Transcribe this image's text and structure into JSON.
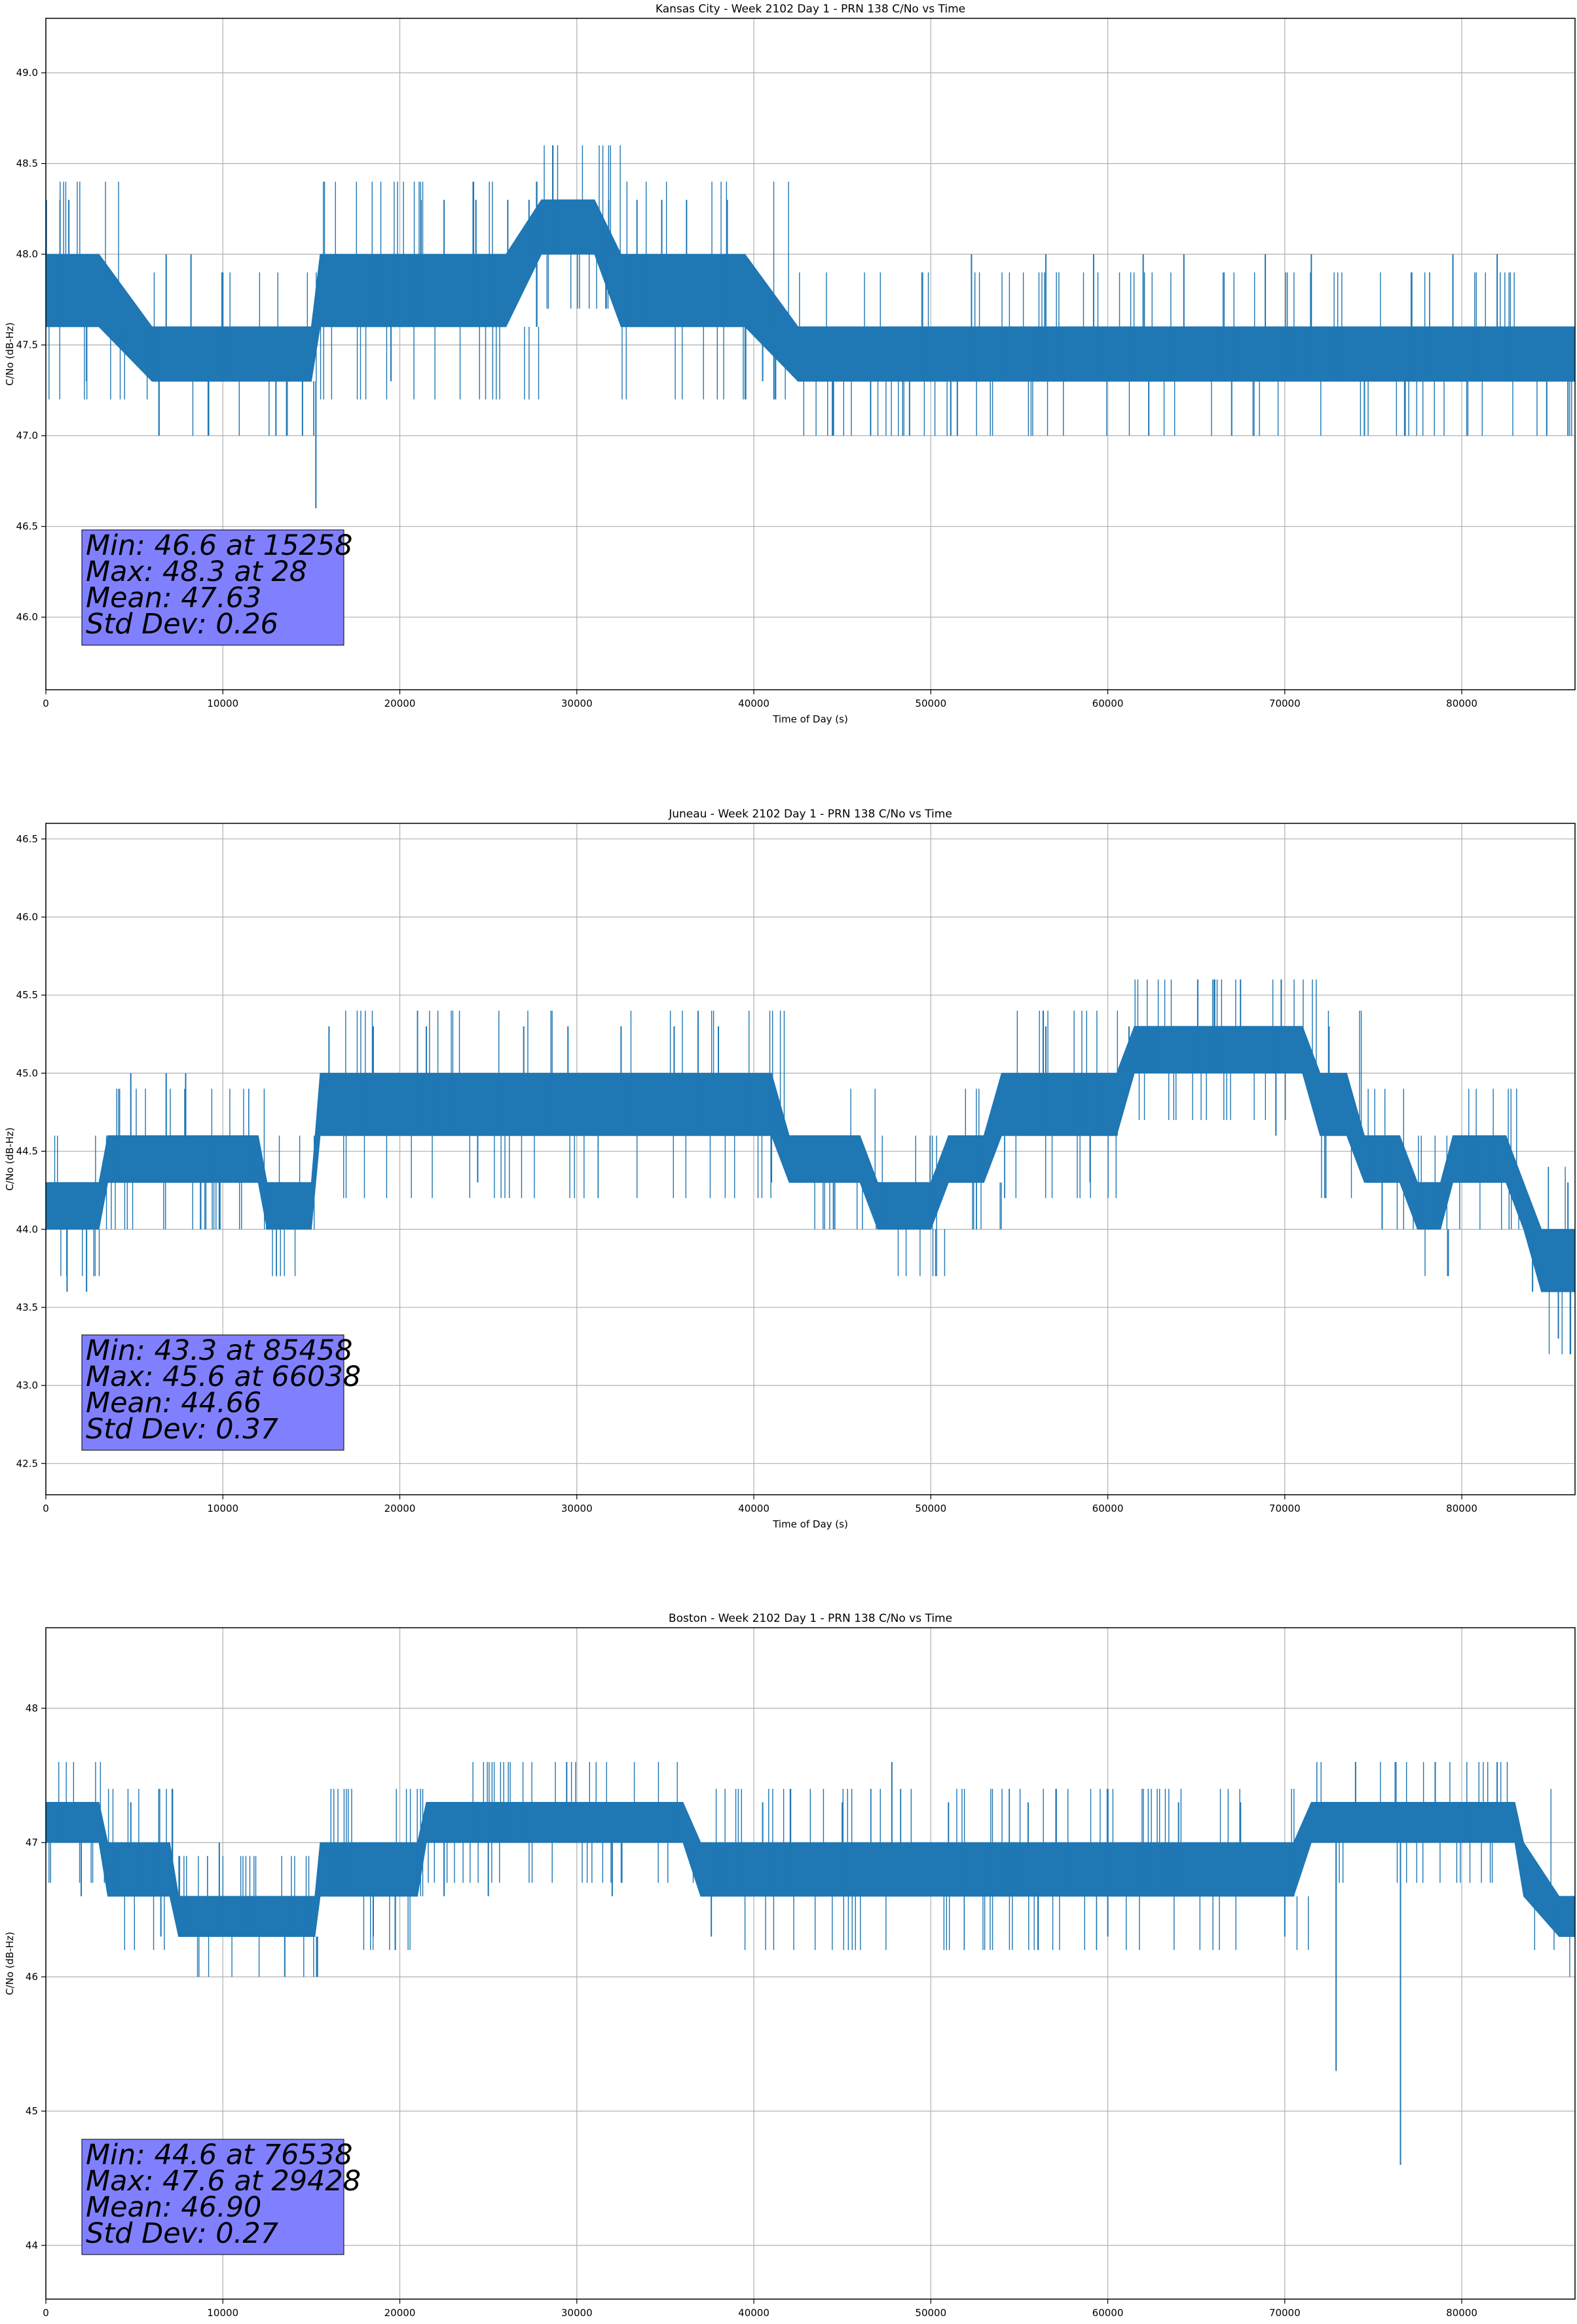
{
  "colors": {
    "series": "#1f77b4",
    "grid": "#b0b0b0",
    "stats_box": "#8080ff",
    "axes": "#000000"
  },
  "chart_data": [
    {
      "type": "line",
      "title": "Kansas City - Week 2102 Day 1 - PRN 138 C/No vs Time",
      "xlabel": "Time of Day (s)",
      "ylabel": "C/No (dB-Hz)",
      "xlim": [
        0,
        86400
      ],
      "ylim": [
        45.6,
        49.3
      ],
      "xticks": [
        0,
        10000,
        20000,
        30000,
        40000,
        50000,
        60000,
        70000,
        80000
      ],
      "yticks": [
        "46.0",
        "46.5",
        "47.0",
        "47.5",
        "48.0",
        "48.5",
        "49.0"
      ],
      "grid": true,
      "series": [
        {
          "band": [
            [
              0,
              47.6,
              48.0
            ],
            [
              3000,
              47.6,
              48.0
            ],
            [
              6000,
              47.3,
              47.6
            ],
            [
              10000,
              47.3,
              47.6
            ],
            [
              15000,
              47.3,
              47.6
            ],
            [
              15500,
              47.6,
              48.0
            ],
            [
              21000,
              47.6,
              48.0
            ],
            [
              26000,
              47.6,
              48.0
            ],
            [
              28000,
              48.0,
              48.3
            ],
            [
              31000,
              48.0,
              48.3
            ],
            [
              32500,
              47.6,
              48.0
            ],
            [
              39500,
              47.6,
              48.0
            ],
            [
              42500,
              47.3,
              47.6
            ],
            [
              50000,
              47.3,
              47.6
            ],
            [
              60000,
              47.3,
              47.6
            ],
            [
              70000,
              47.3,
              47.6
            ],
            [
              86400,
              47.3,
              47.6
            ]
          ],
          "spikes": [
            [
              28,
              48.3
            ],
            [
              800,
              48.3
            ],
            [
              1300,
              48.3
            ],
            [
              2300,
              47.3
            ],
            [
              6800,
              48.0
            ],
            [
              8200,
              48.0
            ],
            [
              13000,
              47.0
            ],
            [
              14500,
              47.0
            ],
            [
              15258,
              46.6
            ],
            [
              19500,
              47.3
            ],
            [
              21200,
              48.3
            ],
            [
              22500,
              48.3
            ],
            [
              24300,
              48.3
            ],
            [
              26100,
              48.3
            ],
            [
              27300,
              48.3
            ],
            [
              29800,
              48.3
            ],
            [
              31800,
              48.3
            ],
            [
              33400,
              48.3
            ],
            [
              34800,
              48.3
            ],
            [
              36200,
              48.3
            ],
            [
              38500,
              48.3
            ],
            [
              40500,
              47.3
            ],
            [
              44500,
              47.0
            ],
            [
              46600,
              47.0
            ],
            [
              48800,
              47.0
            ],
            [
              51500,
              47.0
            ],
            [
              52300,
              48.0
            ],
            [
              56500,
              48.0
            ],
            [
              59200,
              48.0
            ],
            [
              62000,
              48.0
            ],
            [
              64300,
              48.0
            ],
            [
              67000,
              47.0
            ],
            [
              68900,
              48.0
            ],
            [
              71500,
              48.0
            ],
            [
              74500,
              47.0
            ],
            [
              76800,
              47.0
            ],
            [
              79500,
              48.0
            ],
            [
              82000,
              48.0
            ],
            [
              84800,
              47.0
            ],
            [
              86000,
              47.0
            ]
          ]
        }
      ],
      "stats": [
        "Min: 46.6 at 15258",
        "Max: 48.3 at 28",
        "Mean: 47.63",
        "Std Dev: 0.26"
      ]
    },
    {
      "type": "line",
      "title": "Juneau - Week 2102 Day 1 - PRN 138 C/No vs Time",
      "xlabel": "Time of Day (s)",
      "ylabel": "C/No (dB-Hz)",
      "xlim": [
        0,
        86400
      ],
      "ylim": [
        42.3,
        46.6
      ],
      "xticks": [
        0,
        10000,
        20000,
        30000,
        40000,
        50000,
        60000,
        70000,
        80000
      ],
      "yticks": [
        "42.5",
        "43.0",
        "43.5",
        "44.0",
        "44.5",
        "45.0",
        "45.5",
        "46.0",
        "46.5"
      ],
      "grid": true,
      "series": [
        {
          "band": [
            [
              0,
              44.0,
              44.3
            ],
            [
              3000,
              44.0,
              44.3
            ],
            [
              3500,
              44.3,
              44.6
            ],
            [
              12000,
              44.3,
              44.6
            ],
            [
              12500,
              44.0,
              44.3
            ],
            [
              15000,
              44.0,
              44.3
            ],
            [
              15500,
              44.6,
              45.0
            ],
            [
              21000,
              44.6,
              45.0
            ],
            [
              24000,
              44.6,
              45.0
            ],
            [
              41000,
              44.6,
              45.0
            ],
            [
              42000,
              44.3,
              44.6
            ],
            [
              46000,
              44.3,
              44.6
            ],
            [
              47000,
              44.0,
              44.3
            ],
            [
              50000,
              44.0,
              44.3
            ],
            [
              51000,
              44.3,
              44.6
            ],
            [
              53000,
              44.3,
              44.6
            ],
            [
              54000,
              44.6,
              45.0
            ],
            [
              60500,
              44.6,
              45.0
            ],
            [
              61500,
              45.0,
              45.3
            ],
            [
              71000,
              45.0,
              45.3
            ],
            [
              72000,
              44.6,
              45.0
            ],
            [
              73500,
              44.6,
              45.0
            ],
            [
              74500,
              44.3,
              44.6
            ],
            [
              76500,
              44.3,
              44.6
            ],
            [
              77500,
              44.0,
              44.3
            ],
            [
              78800,
              44.0,
              44.3
            ],
            [
              79500,
              44.3,
              44.6
            ],
            [
              82500,
              44.3,
              44.6
            ],
            [
              83500,
              44.0,
              44.3
            ],
            [
              84500,
              43.6,
              44.0
            ],
            [
              86400,
              43.6,
              44.0
            ]
          ],
          "spikes": [
            [
              1200,
              43.6
            ],
            [
              2300,
              43.6
            ],
            [
              4800,
              45.0
            ],
            [
              6800,
              45.0
            ],
            [
              7900,
              45.0
            ],
            [
              9800,
              44.0
            ],
            [
              13500,
              44.0
            ],
            [
              16000,
              45.3
            ],
            [
              18500,
              45.3
            ],
            [
              21500,
              45.3
            ],
            [
              24400,
              44.3
            ],
            [
              27000,
              45.3
            ],
            [
              29500,
              45.3
            ],
            [
              32500,
              45.3
            ],
            [
              35500,
              45.3
            ],
            [
              38000,
              45.3
            ],
            [
              41000,
              44.3
            ],
            [
              44500,
              44.0
            ],
            [
              51000,
              44.6
            ],
            [
              54000,
              44.3
            ],
            [
              56500,
              45.3
            ],
            [
              59000,
              44.3
            ],
            [
              61200,
              45.3
            ],
            [
              64000,
              45.3
            ],
            [
              66038,
              45.6
            ],
            [
              67500,
              45.6
            ],
            [
              69800,
              45.6
            ],
            [
              69500,
              44.6
            ],
            [
              72500,
              45.3
            ],
            [
              75500,
              44.0
            ],
            [
              77500,
              44.0
            ],
            [
              81500,
              44.6
            ],
            [
              84000,
              43.6
            ],
            [
              85458,
              43.3
            ],
            [
              86000,
              44.3
            ]
          ]
        }
      ],
      "stats": [
        "Min: 43.3 at 85458",
        "Max: 45.6 at 66038",
        "Mean: 44.66",
        "Std Dev: 0.37"
      ]
    },
    {
      "type": "line",
      "title": "Boston - Week 2102 Day 1 - PRN 138 C/No vs Time",
      "xlabel": "Time of Day (s)",
      "ylabel": "C/No (dB-Hz)",
      "xlim": [
        0,
        86400
      ],
      "ylim": [
        43.6,
        48.6
      ],
      "xticks": [
        0,
        10000,
        20000,
        30000,
        40000,
        50000,
        60000,
        70000,
        80000
      ],
      "yticks": [
        "44",
        "45",
        "46",
        "47",
        "48"
      ],
      "grid": true,
      "series": [
        {
          "band": [
            [
              0,
              47.0,
              47.3
            ],
            [
              3000,
              47.0,
              47.3
            ],
            [
              3500,
              46.6,
              47.0
            ],
            [
              7000,
              46.6,
              47.0
            ],
            [
              7500,
              46.3,
              46.6
            ],
            [
              15200,
              46.3,
              46.6
            ],
            [
              15500,
              46.6,
              47.0
            ],
            [
              21000,
              46.6,
              47.0
            ],
            [
              21500,
              47.0,
              47.3
            ],
            [
              36000,
              47.0,
              47.3
            ],
            [
              37000,
              46.6,
              47.0
            ],
            [
              56500,
              46.6,
              47.0
            ],
            [
              57500,
              46.6,
              47.0
            ],
            [
              70500,
              46.6,
              47.0
            ],
            [
              71500,
              47.0,
              47.3
            ],
            [
              73000,
              47.0,
              47.3
            ],
            [
              73500,
              47.0,
              47.3
            ],
            [
              83000,
              47.0,
              47.3
            ],
            [
              83500,
              46.6,
              47.0
            ],
            [
              85500,
              46.3,
              46.6
            ],
            [
              86400,
              46.3,
              46.6
            ]
          ],
          "spikes": [
            [
              2000,
              46.6
            ],
            [
              4800,
              47.3
            ],
            [
              6500,
              46.3
            ],
            [
              9800,
              47.0
            ],
            [
              13500,
              46.0
            ],
            [
              15300,
              46.0
            ],
            [
              18500,
              46.3
            ],
            [
              22500,
              46.6
            ],
            [
              25000,
              46.6
            ],
            [
              29428,
              47.6
            ],
            [
              32000,
              46.6
            ],
            [
              37600,
              46.3
            ],
            [
              40500,
              47.3
            ],
            [
              45000,
              47.3
            ],
            [
              47800,
              47.6
            ],
            [
              51000,
              47.3
            ],
            [
              55500,
              47.3
            ],
            [
              60000,
              46.3
            ],
            [
              64000,
              47.3
            ],
            [
              67500,
              47.3
            ],
            [
              70000,
              46.3
            ],
            [
              72900,
              45.3
            ],
            [
              74000,
              47.6
            ],
            [
              76538,
              44.6
            ],
            [
              78500,
              47.6
            ],
            [
              80500,
              47.3
            ],
            [
              82000,
              47.6
            ],
            [
              84500,
              46.6
            ]
          ]
        }
      ],
      "stats": [
        "Min: 44.6 at 76538",
        "Max: 47.6 at 29428",
        "Mean: 46.90",
        "Std Dev: 0.27"
      ]
    }
  ]
}
